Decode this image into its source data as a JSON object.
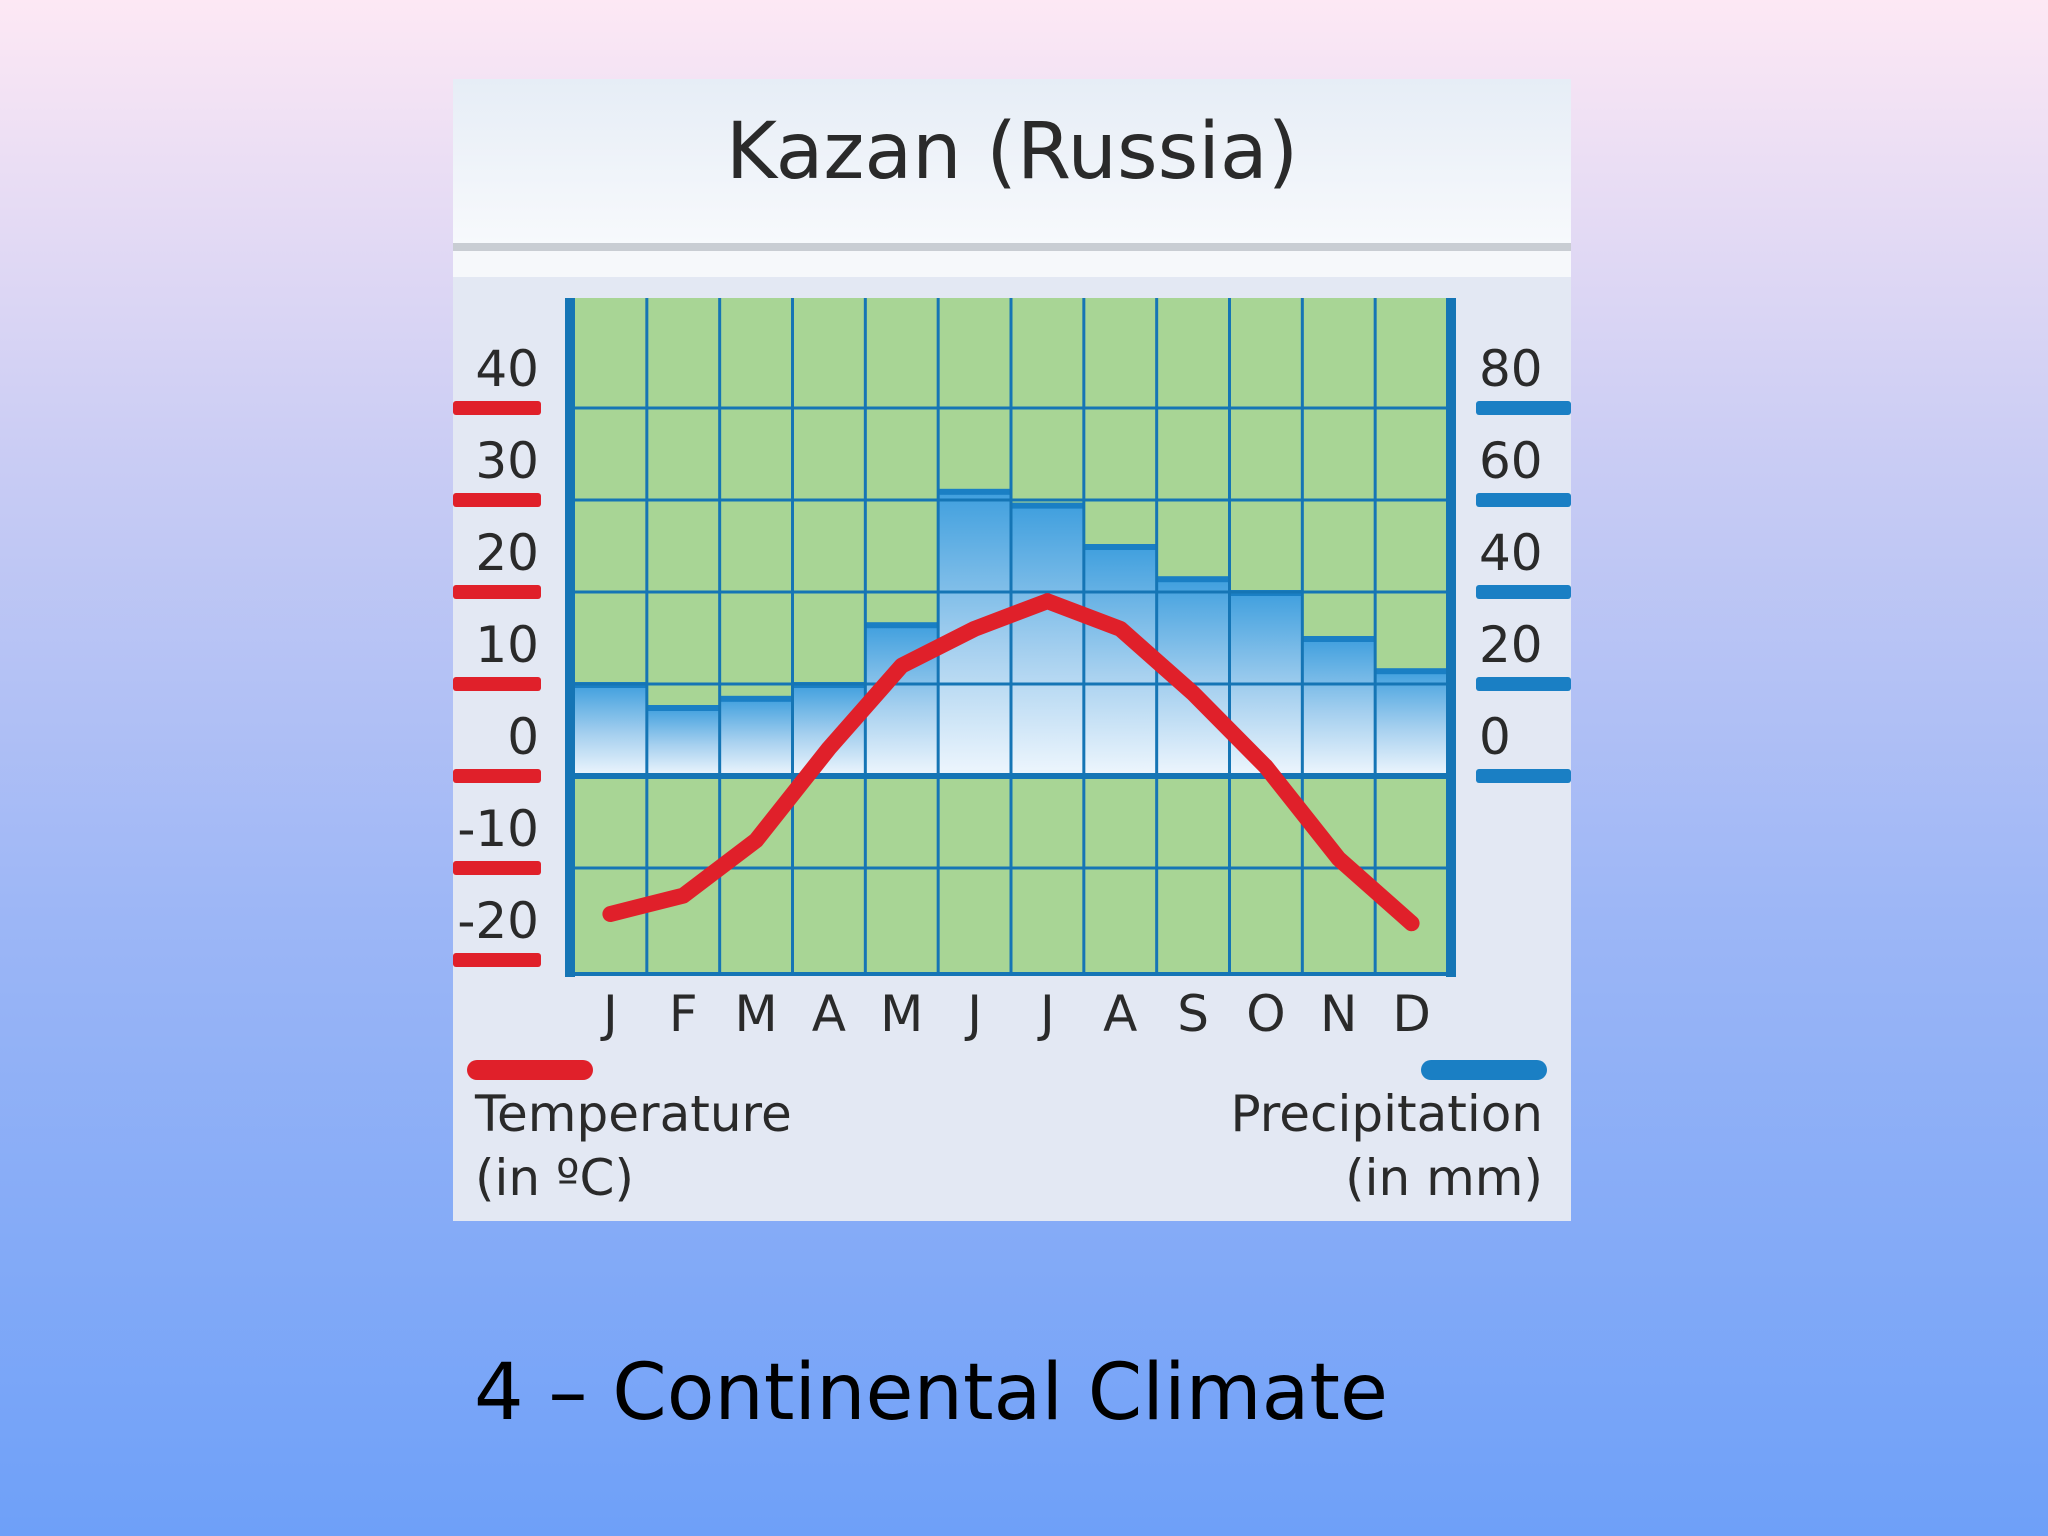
{
  "slide": {
    "caption": "4 – Continental Climate"
  },
  "chart_data": {
    "type": "bar+line",
    "title": "Kazan (Russia)",
    "categories": [
      "J",
      "F",
      "M",
      "A",
      "M",
      "J",
      "J",
      "A",
      "S",
      "O",
      "N",
      "D"
    ],
    "temperature": {
      "label_line1": "Temperature",
      "label_line2": "(in ºC)",
      "values": [
        -15,
        -13,
        -7,
        3,
        12,
        16,
        19,
        16,
        9,
        1,
        -9,
        -16
      ],
      "ylim": [
        -20,
        40
      ],
      "ticks": [
        "40",
        "30",
        "20",
        "10",
        "0",
        "-10",
        "-20"
      ],
      "tick_values": [
        40,
        30,
        20,
        10,
        0,
        -10,
        -20
      ],
      "color": "#e0202a"
    },
    "precipitation": {
      "label_line1": "Precipitation",
      "label_line2": "(in mm)",
      "values": [
        20,
        15,
        17,
        20,
        33,
        62,
        59,
        50,
        43,
        40,
        30,
        23
      ],
      "ylim": [
        0,
        80
      ],
      "ticks": [
        "80",
        "60",
        "40",
        "20",
        "0"
      ],
      "tick_values": [
        80,
        60,
        40,
        20,
        0
      ],
      "color": "#1a7fc4"
    },
    "grid": true
  }
}
